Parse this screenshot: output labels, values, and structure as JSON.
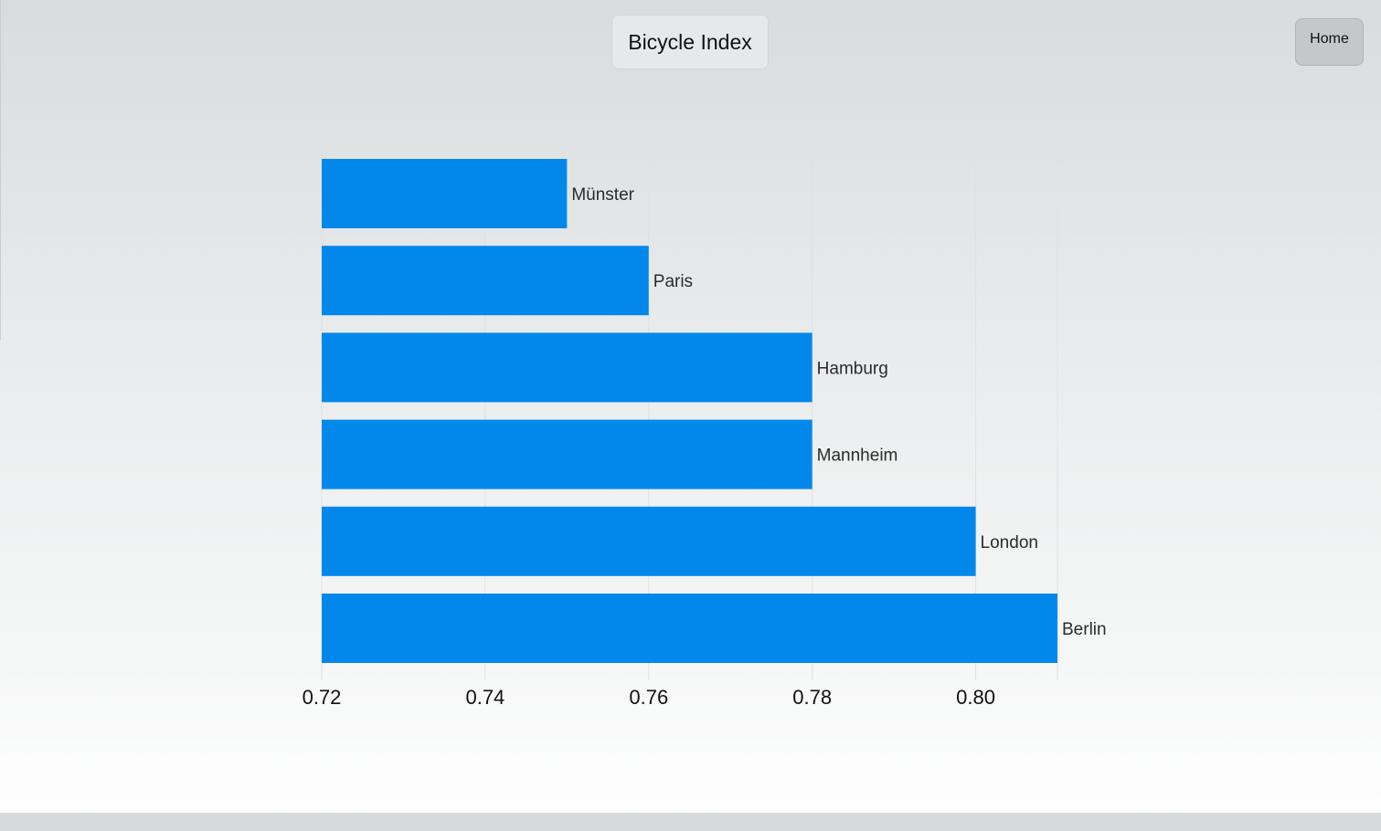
{
  "header": {
    "title": "Bicycle Index",
    "home_label": "Home"
  },
  "colors": {
    "bar": "#0288eb",
    "grid": "#dfe2e3",
    "label": "#2b2b2b",
    "tick": "#111111"
  },
  "chart_data": {
    "type": "bar",
    "orientation": "horizontal",
    "categories": [
      "Münster",
      "Paris",
      "Hamburg",
      "Mannheim",
      "London",
      "Berlin"
    ],
    "values": [
      0.75,
      0.76,
      0.78,
      0.78,
      0.8,
      0.81
    ],
    "xlim": [
      0.72,
      0.81
    ],
    "xticks": [
      "0.72",
      "0.74",
      "0.76",
      "0.78",
      "0.80"
    ],
    "xtick_values": [
      0.72,
      0.74,
      0.76,
      0.78,
      0.8
    ],
    "grid": true,
    "legend": "none"
  }
}
